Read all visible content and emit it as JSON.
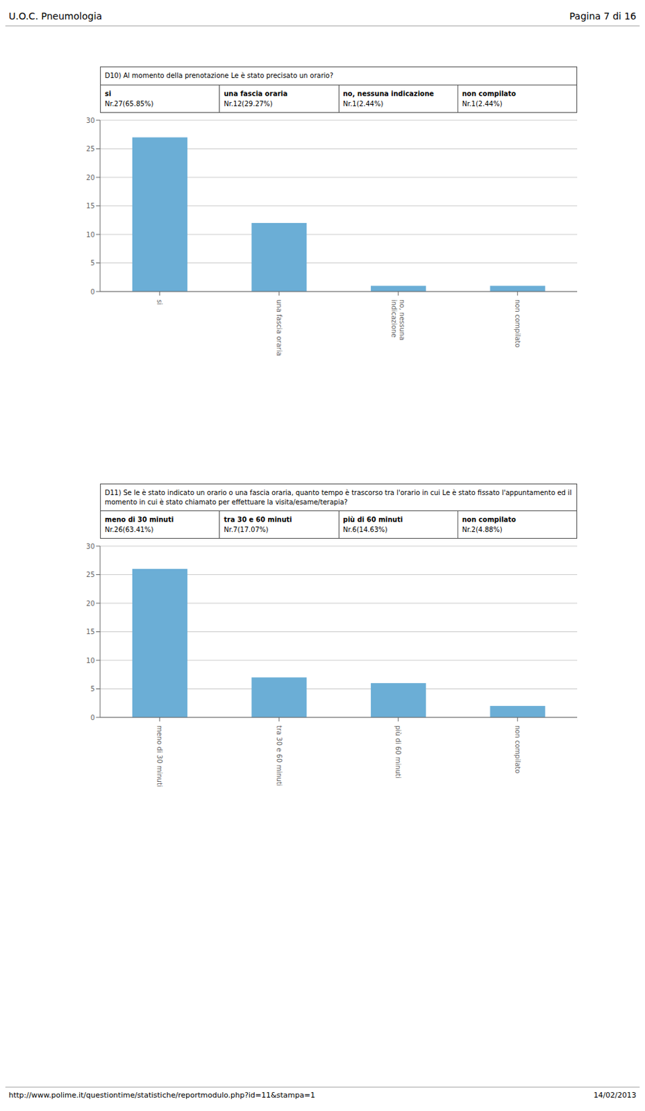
{
  "chart_data": [
    {
      "type": "bar",
      "title": "D10) Al momento della prenotazione Le è stato precisato un orario?",
      "annotations": [
        "U.O.C. Pneumologia",
        "Pagina 7 di 16",
        "si",
        "Nr.27(65.85%)",
        "una fascia oraria",
        "Nr.12(29.27%)",
        "no, nessuna indicazione",
        "Nr.1(2.44%)",
        "non compilato",
        "Nr.1(2.44%)"
      ],
      "categories": [
        "si",
        "una fascia oraria",
        "no, nessuna\nindicazione",
        "non compilato"
      ],
      "values": [
        27,
        12,
        1,
        1
      ],
      "color": "#6baed6",
      "ylim": [
        0,
        30
      ],
      "yticks": [
        0,
        5,
        10,
        15,
        20,
        25,
        30
      ],
      "grid": true
    },
    {
      "type": "bar",
      "title": "D11) Se le è stato indicato un orario o una fascia oraria, quanto tempo è trascorso tra l'orario in cui Le è stato fissato l'appuntamento ed il momento in cui è stato chiamato per effettuare la visita/esame/terapia?",
      "annotations": [
        "meno di 30 minuti",
        "Nr.26(63.41%)",
        "tra 30 e 60 minuti",
        "Nr.7(17.07%)",
        "più di 60 minuti",
        "Nr.6(14.63%)",
        "non compilato",
        "Nr.2(4.88%)",
        "http://www.polime.it/questiontime/statistiche/reportmodulo.php?id=11&stampa=1",
        "14/02/2013"
      ],
      "categories": [
        "meno di 30 minuti",
        "tra 30 e 60 minuti",
        "più di 60 minuti",
        "non compilato"
      ],
      "values": [
        26,
        7,
        6,
        2
      ],
      "color": "#6baed6",
      "ylim": [
        0,
        30
      ],
      "yticks": [
        0,
        5,
        10,
        15,
        20,
        25,
        30
      ],
      "grid": true
    }
  ]
}
